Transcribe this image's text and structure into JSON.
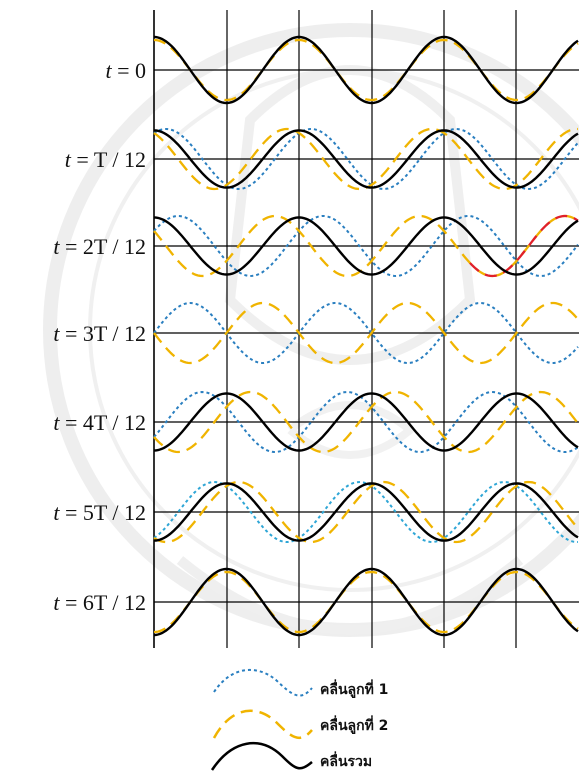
{
  "rows": [
    {
      "label": "t = 0",
      "w1": false,
      "w2": true,
      "sum": true,
      "w1_phase": 0,
      "w2_phase": 0
    },
    {
      "label": "t = T / 12",
      "w1": true,
      "w2": true,
      "sum": true,
      "w1_phase": 30,
      "w2_phase": -30
    },
    {
      "label": "t = 2T / 12",
      "w1": true,
      "w2": true,
      "sum": true,
      "w1_phase": 60,
      "w2_phase": -60,
      "highlight": true
    },
    {
      "label": "t = 3T / 12",
      "w1": true,
      "w2": true,
      "sum": false,
      "w1_phase": 90,
      "w2_phase": -90
    },
    {
      "label": "t = 4T / 12",
      "w1": true,
      "w2": true,
      "sum": true,
      "w1_phase": 120,
      "w2_phase": -120
    },
    {
      "label": "t = 5T / 12",
      "w1": true,
      "w2": true,
      "sum": true,
      "w1_phase": 150,
      "w2_phase": -150
    },
    {
      "label": "t = 6T / 12",
      "w1": false,
      "w2": true,
      "sum": true,
      "w1_phase": 180,
      "w2_phase": -180
    }
  ],
  "legend": {
    "wave1": "คลื่นลูกที่ 1",
    "wave2": "คลื่นลูกที่ 2",
    "sum": "คลื่นรวม"
  },
  "colors": {
    "wave1": "#2a7fc0",
    "wave2": "#f0b400",
    "sum": "#000000",
    "highlight": "#e0202a",
    "watermark": "#c9c9c9"
  }
}
